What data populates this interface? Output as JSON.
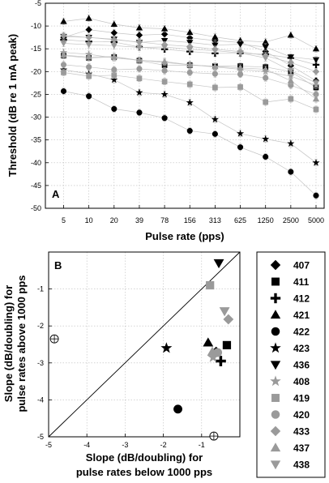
{
  "panel_a": {
    "label": "A",
    "chart_data": {
      "type": "line",
      "ylabel": "Threshold (dB re 1 mA peak)",
      "xlabel": "Pulse rate (pps)",
      "categories": [
        "5",
        "10",
        "20",
        "39",
        "78",
        "156",
        "313",
        "625",
        "1250",
        "2500",
        "5000"
      ],
      "yticks": [
        -5,
        -10,
        -15,
        -20,
        -25,
        -30,
        -35,
        -40,
        -45,
        -50
      ],
      "ylim": [
        -50,
        -5
      ],
      "grid": true,
      "series": [
        {
          "name": "407",
          "marker": "diamond",
          "color": "#000000",
          "values": [
            -12.5,
            -10.8,
            -11.5,
            -12,
            -11.8,
            -12.6,
            -13.2,
            -13.6,
            -15.6,
            -18.7,
            -22
          ]
        },
        {
          "name": "411",
          "marker": "square",
          "color": "#000000",
          "values": [
            -16.5,
            -17,
            -16.8,
            -17.6,
            -18.6,
            -18.6,
            -18.8,
            -18.8,
            -19,
            -20,
            -23.5
          ]
        },
        {
          "name": "412",
          "marker": "plus",
          "color": "#000000",
          "values": [
            -13,
            -13.4,
            -13.5,
            -14.6,
            -15.1,
            -15.6,
            -16,
            -16,
            -16.2,
            -17,
            -18.5
          ]
        },
        {
          "name": "421",
          "marker": "triangle-up",
          "color": "#000000",
          "values": [
            -9,
            -8.3,
            -9.6,
            -10.4,
            -10.6,
            -11.4,
            -12.4,
            -13.2,
            -13.5,
            -12,
            -15
          ]
        },
        {
          "name": "422",
          "marker": "circle",
          "color": "#000000",
          "values": [
            -24.3,
            -25.4,
            -28.2,
            -29,
            -30.2,
            -33,
            -33.7,
            -36.6,
            -38.7,
            -42,
            -47.2
          ]
        },
        {
          "name": "423",
          "marker": "star",
          "color": "#000000",
          "values": [
            -19.6,
            -20.5,
            -21.8,
            -24.6,
            -25,
            -26.8,
            -30.5,
            -33.6,
            -34.8,
            -35.8,
            -40
          ]
        },
        {
          "name": "436",
          "marker": "triangle-down",
          "color": "#000000",
          "values": [
            -12.3,
            -12.5,
            -12.9,
            -13.6,
            -13.2,
            -13.6,
            -14.2,
            -14,
            -14.6,
            -16.8,
            -17.4
          ]
        },
        {
          "name": "408",
          "marker": "star",
          "color": "#9a9a9a",
          "values": [
            -15.8,
            -16.2,
            -17,
            -17.5,
            -18,
            -18.5,
            -19,
            -19.5,
            -20,
            -21,
            -23
          ]
        },
        {
          "name": "419",
          "marker": "square",
          "color": "#9a9a9a",
          "values": [
            -20.2,
            -21,
            -20.8,
            -21.5,
            -22.2,
            -22.8,
            -23.5,
            -23.4,
            -26.7,
            -26,
            -28.3
          ]
        },
        {
          "name": "420",
          "marker": "circle",
          "color": "#9a9a9a",
          "values": [
            -18.5,
            -19,
            -19.6,
            -19.4,
            -19.8,
            -20.2,
            -20.5,
            -20.6,
            -21.4,
            -23,
            -25
          ]
        },
        {
          "name": "433",
          "marker": "diamond",
          "color": "#9a9a9a",
          "values": [
            -12.1,
            -12.5,
            -13,
            -13.5,
            -14.1,
            -14.5,
            -15.1,
            -15.6,
            -16.5,
            -18,
            -20
          ]
        },
        {
          "name": "437",
          "marker": "triangle-up",
          "color": "#9a9a9a",
          "values": [
            -16.4,
            -16.8,
            -16.7,
            -17.5,
            -17.8,
            -18.5,
            -18.9,
            -19.2,
            -19.5,
            -22,
            -26
          ]
        },
        {
          "name": "438",
          "marker": "triangle-down",
          "color": "#9a9a9a",
          "values": [
            -13.8,
            -14.1,
            -14.3,
            -14.7,
            -14.6,
            -15.1,
            -15.4,
            -15.9,
            -17,
            -19.8,
            -22.5
          ]
        }
      ]
    }
  },
  "panel_b": {
    "label": "B",
    "chart_data": {
      "type": "scatter",
      "xlabel": "Slope (dB/doubling) for pulse rates below 1000 pps",
      "xlabel_lines": [
        "Slope (dB/doubling) for",
        "pulse rates below 1000 pps"
      ],
      "ylabel": "Slope (dB/doubling) for pulse rates above 1000 pps",
      "ylabel_lines": [
        "Slope (dB/doubling) for",
        "pulse rates above 1000 pps"
      ],
      "xlim": [
        -5,
        0
      ],
      "ylim": [
        -5,
        0
      ],
      "xticks": [
        -5,
        -4,
        -3,
        -2,
        -1
      ],
      "yticks": [
        -1,
        -2,
        -3,
        -4,
        -5
      ],
      "identity_line": true,
      "grid": true,
      "points": [
        {
          "name": "407",
          "marker": "diamond",
          "color": "#000000",
          "x": -0.62,
          "y": -2.7
        },
        {
          "name": "411",
          "marker": "square",
          "color": "#000000",
          "x": -0.34,
          "y": -2.52
        },
        {
          "name": "412",
          "marker": "plus",
          "color": "#000000",
          "x": -0.5,
          "y": -2.95
        },
        {
          "name": "421",
          "marker": "triangle-up",
          "color": "#000000",
          "x": -0.83,
          "y": -2.45
        },
        {
          "name": "422",
          "marker": "circle",
          "color": "#000000",
          "x": -1.62,
          "y": -4.25
        },
        {
          "name": "423",
          "marker": "star",
          "color": "#000000",
          "x": -1.92,
          "y": -2.6
        },
        {
          "name": "436",
          "marker": "triangle-down",
          "color": "#000000",
          "x": -0.55,
          "y": -0.3
        },
        {
          "name": "408",
          "marker": "star",
          "color": "#9a9a9a",
          "x": -0.7,
          "y": -2.85
        },
        {
          "name": "419",
          "marker": "square",
          "color": "#9a9a9a",
          "x": -0.78,
          "y": -0.9
        },
        {
          "name": "420",
          "marker": "circle",
          "color": "#9a9a9a",
          "x": -0.58,
          "y": -2.72
        },
        {
          "name": "433",
          "marker": "diamond",
          "color": "#9a9a9a",
          "x": -0.3,
          "y": -1.82
        },
        {
          "name": "437",
          "marker": "triangle-up",
          "color": "#9a9a9a",
          "x": -0.72,
          "y": -2.7
        },
        {
          "name": "438",
          "marker": "triangle-down",
          "color": "#9a9a9a",
          "x": -0.4,
          "y": -1.6
        }
      ],
      "axis_markers": [
        {
          "name": "offscale-x",
          "x": -4.85,
          "y": -2.35
        },
        {
          "name": "offscale-y",
          "x": -0.68,
          "y": -4.98
        }
      ]
    }
  },
  "legend": {
    "entries": [
      {
        "label": "407",
        "marker": "diamond",
        "color": "#000000"
      },
      {
        "label": "411",
        "marker": "square",
        "color": "#000000"
      },
      {
        "label": "412",
        "marker": "plus",
        "color": "#000000"
      },
      {
        "label": "421",
        "marker": "triangle-up",
        "color": "#000000"
      },
      {
        "label": "422",
        "marker": "circle",
        "color": "#000000"
      },
      {
        "label": "423",
        "marker": "star",
        "color": "#000000"
      },
      {
        "label": "436",
        "marker": "triangle-down",
        "color": "#000000"
      },
      {
        "label": "408",
        "marker": "star",
        "color": "#9a9a9a"
      },
      {
        "label": "419",
        "marker": "square",
        "color": "#9a9a9a"
      },
      {
        "label": "420",
        "marker": "circle",
        "color": "#9a9a9a"
      },
      {
        "label": "433",
        "marker": "diamond",
        "color": "#9a9a9a"
      },
      {
        "label": "437",
        "marker": "triangle-up",
        "color": "#9a9a9a"
      },
      {
        "label": "438",
        "marker": "triangle-down",
        "color": "#9a9a9a"
      }
    ]
  }
}
